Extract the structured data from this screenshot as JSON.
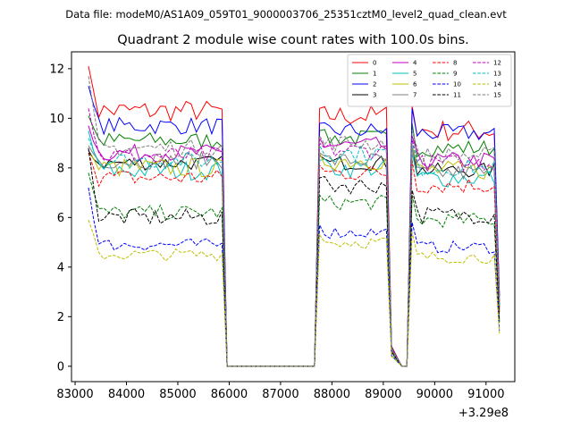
{
  "suptitle": "Data file: modeM0/AS1A09_059T01_9000003706_25351cztM0_level2_quad_clean.evt",
  "chart_data": {
    "type": "line",
    "title": "Quadrant 2 module wise count rates with 100.0s bins.",
    "xlabel": "",
    "ylabel": "",
    "x_offset_label": "+3.29e8",
    "xlim": [
      82930,
      91560
    ],
    "ylim": [
      -0.62,
      12.68
    ],
    "x_ticks": [
      83000,
      84000,
      85000,
      86000,
      87000,
      88000,
      89000,
      90000,
      91000
    ],
    "x_tick_labels": [
      "83000",
      "84000",
      "85000",
      "86000",
      "87000",
      "88000",
      "89000",
      "90000",
      "91000"
    ],
    "y_ticks": [
      0,
      2,
      4,
      6,
      8,
      10,
      12
    ],
    "y_tick_labels": [
      "0",
      "2",
      "4",
      "6",
      "8",
      "10",
      "12"
    ],
    "grid": false,
    "legend_position": "top-right",
    "time_bins": {
      "segment1": {
        "start": 83260,
        "step": 100,
        "count": 27
      },
      "gap1": [
        85960,
        87660
      ],
      "segment2": {
        "start": 87760,
        "step": 100,
        "count": 14
      },
      "dip": {
        "x": [
          89160,
          89260,
          89360,
          89460
        ],
        "level_factor": [
          0.08,
          0.04,
          0.0,
          0.0
        ]
      },
      "segment3": {
        "start": 89560,
        "step": 100,
        "count": 17
      },
      "end_x": 91260
    },
    "series": [
      {
        "name": "0",
        "color": "#ff0000",
        "dash": "solid",
        "base": [
          10.3,
          10.1,
          9.5
        ],
        "start": 12.1,
        "amp": 0.45
      },
      {
        "name": "1",
        "color": "#008000",
        "dash": "solid",
        "base": [
          9.1,
          9.2,
          8.8
        ],
        "start": 10.1,
        "amp": 0.35
      },
      {
        "name": "2",
        "color": "#0000ff",
        "dash": "solid",
        "base": [
          9.7,
          9.5,
          9.4
        ],
        "start": 11.3,
        "amp": 0.35
      },
      {
        "name": "3",
        "color": "#000000",
        "dash": "solid",
        "base": [
          8.2,
          8.2,
          7.9
        ],
        "start": 8.7,
        "amp": 0.3
      },
      {
        "name": "4",
        "color": "#bf00bf",
        "dash": "solid",
        "base": [
          8.6,
          8.9,
          8.3
        ],
        "start": 9.7,
        "amp": 0.35
      },
      {
        "name": "5",
        "color": "#00bfbf",
        "dash": "solid",
        "base": [
          7.9,
          8.0,
          7.6
        ],
        "start": 9.5,
        "amp": 0.4
      },
      {
        "name": "6",
        "color": "#bfbf00",
        "dash": "solid",
        "base": [
          8.0,
          8.3,
          7.9
        ],
        "start": 8.6,
        "amp": 0.4
      },
      {
        "name": "7",
        "color": "#808080",
        "dash": "solid",
        "base": [
          8.3,
          8.3,
          7.8
        ],
        "start": 8.9,
        "amp": 0.35
      },
      {
        "name": "8",
        "color": "#ff0000",
        "dash": "dashed",
        "base": [
          7.6,
          7.8,
          7.3
        ],
        "start": 8.6,
        "amp": 0.35
      },
      {
        "name": "9",
        "color": "#008000",
        "dash": "dashed",
        "base": [
          6.2,
          6.6,
          5.9
        ],
        "start": 7.8,
        "amp": 0.3
      },
      {
        "name": "10",
        "color": "#0000ff",
        "dash": "dashed",
        "base": [
          4.9,
          5.4,
          4.8
        ],
        "start": 7.2,
        "amp": 0.25
      },
      {
        "name": "11",
        "color": "#000000",
        "dash": "dashed",
        "base": [
          6.0,
          7.3,
          6.1
        ],
        "start": 8.8,
        "amp": 0.35
      },
      {
        "name": "12",
        "color": "#bf00bf",
        "dash": "dashed",
        "base": [
          8.5,
          8.7,
          8.2
        ],
        "start": 10.4,
        "amp": 0.35
      },
      {
        "name": "13",
        "color": "#00bfbf",
        "dash": "dashed",
        "base": [
          8.3,
          8.6,
          8.0
        ],
        "start": 9.2,
        "amp": 0.35
      },
      {
        "name": "14",
        "color": "#bfbf00",
        "dash": "dashed",
        "base": [
          4.5,
          5.0,
          4.4
        ],
        "start": 5.9,
        "amp": 0.25
      },
      {
        "name": "15",
        "color": "#808080",
        "dash": "dashed",
        "base": [
          8.8,
          9.0,
          8.5
        ],
        "start": 11.7,
        "amp": 0.35
      }
    ]
  }
}
